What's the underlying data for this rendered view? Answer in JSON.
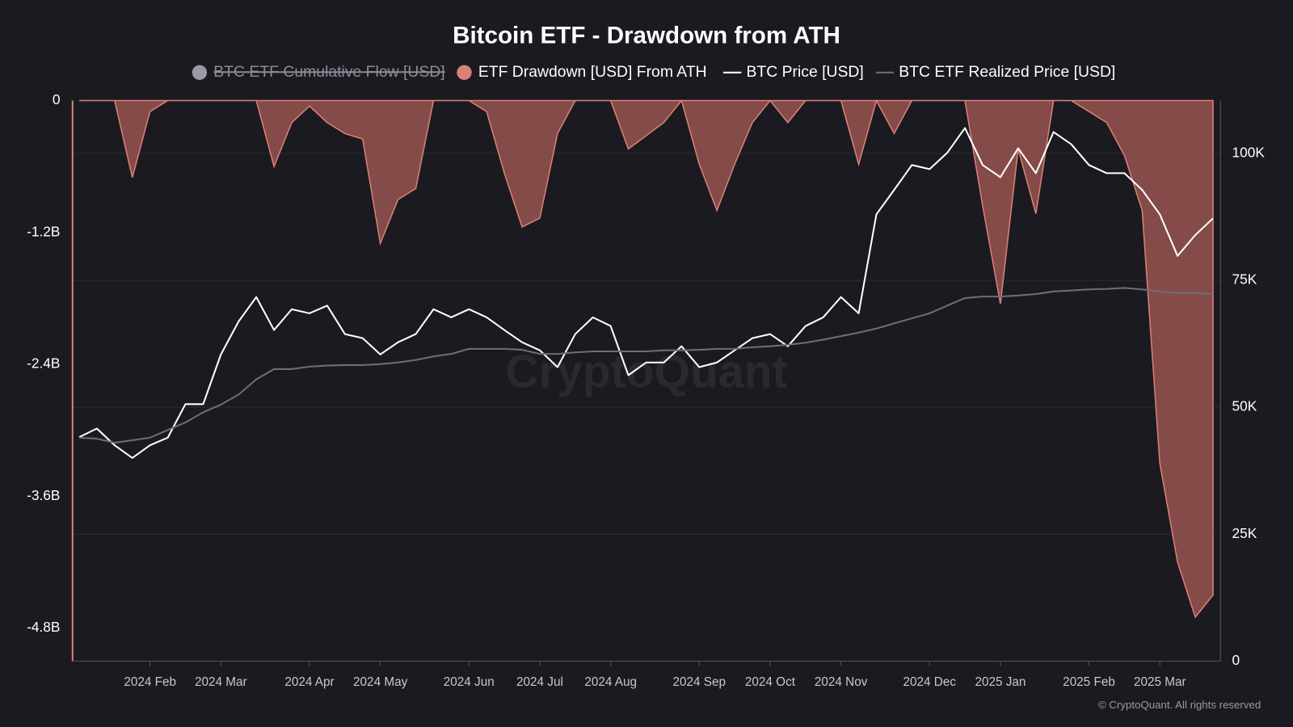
{
  "chart_data": {
    "type": "area_line",
    "title": "Bitcoin ETF - Drawdown from ATH",
    "watermark": "CryptoQuant",
    "footer": "© CryptoQuant. All rights reserved",
    "categories": [
      null,
      null,
      null,
      null,
      "2024 Feb",
      null,
      null,
      null,
      "2024 Mar",
      null,
      null,
      null,
      null,
      "2024 Apr",
      null,
      null,
      null,
      "2024 May",
      null,
      null,
      null,
      null,
      "2024 Jun",
      null,
      null,
      null,
      "2024 Jul",
      null,
      null,
      null,
      "2024 Aug",
      null,
      null,
      null,
      null,
      "2024 Sep",
      null,
      null,
      null,
      "2024 Oct",
      null,
      null,
      null,
      "2024 Nov",
      null,
      null,
      null,
      null,
      "2024 Dec",
      null,
      null,
      null,
      "2025 Jan",
      null,
      null,
      null,
      null,
      "2025 Feb",
      null,
      null,
      null,
      "2025 Mar",
      null,
      null,
      null
    ],
    "series": [
      {
        "name": "BTC ETF Cumulative Flow [USD]",
        "color": "#9a99a6",
        "visible": false
      },
      {
        "name": "ETF Drawdown [USD] From ATH",
        "color": "#d98277",
        "fill": "#8a4e4b",
        "axis": "y",
        "values": [
          0,
          0,
          0,
          -700000000,
          -100000000,
          0,
          0,
          0,
          0,
          0,
          0,
          -600000000,
          -200000000,
          -50000000,
          -200000000,
          -300000000,
          -350000000,
          -1300000000,
          -900000000,
          -800000000,
          0,
          0,
          0,
          -100000000,
          -660000000,
          -1150000000,
          -1070000000,
          -300000000,
          0,
          0,
          0,
          -440000000,
          -320000000,
          -200000000,
          0,
          -580000000,
          -1000000000,
          -580000000,
          -200000000,
          0,
          -200000000,
          0,
          0,
          0,
          -580000000,
          0,
          -300000000,
          0,
          0,
          0,
          0,
          -960000000,
          -1850000000,
          -440000000,
          -1030000000,
          0,
          0,
          -100000000,
          -200000000,
          -500000000,
          -1000000000,
          -3300000000,
          -4200000000,
          -4700000000,
          -4500000000
        ]
      },
      {
        "name": "BTC Price [USD]",
        "color": "#ffffff",
        "axis": "y2",
        "values": [
          44100,
          45800,
          42500,
          40000,
          42500,
          44000,
          50600,
          50600,
          60400,
          66900,
          71700,
          65200,
          69300,
          68500,
          70000,
          64400,
          63600,
          60400,
          62800,
          64400,
          69300,
          67700,
          69300,
          67700,
          65200,
          62800,
          61200,
          57900,
          64400,
          67700,
          66000,
          56300,
          58800,
          58800,
          62000,
          57900,
          58800,
          61200,
          63600,
          64400,
          62000,
          66000,
          67700,
          71700,
          68500,
          88000,
          92800,
          97700,
          96900,
          100100,
          105000,
          97700,
          95300,
          101000,
          96100,
          104200,
          101800,
          97700,
          96100,
          96100,
          92800,
          88000,
          79800,
          83900,
          87200
        ]
      },
      {
        "name": "BTC ETF Realized Price [USD]",
        "color": "#6e6d78",
        "axis": "y2",
        "values": [
          44000,
          43800,
          43000,
          43500,
          44000,
          45500,
          47000,
          49000,
          50500,
          52500,
          55500,
          57500,
          57500,
          58000,
          58200,
          58300,
          58300,
          58500,
          58800,
          59300,
          60000,
          60500,
          61500,
          61500,
          61500,
          61300,
          60500,
          60500,
          60800,
          61000,
          61000,
          61000,
          61000,
          61200,
          61200,
          61300,
          61500,
          61500,
          61800,
          62000,
          62300,
          62700,
          63300,
          64000,
          64700,
          65500,
          66500,
          67500,
          68500,
          70000,
          71500,
          71800,
          71800,
          72000,
          72300,
          72800,
          73000,
          73200,
          73300,
          73500,
          73200,
          72800,
          72500,
          72500,
          72300
        ]
      }
    ],
    "ylim": [
      -5100000000,
      0
    ],
    "yticks": [
      0,
      {
        "value": -1200000000,
        "label": "-1.2B"
      },
      {
        "value": -2400000000,
        "label": "-2.4B"
      },
      {
        "value": -3600000000,
        "label": "-3.6B"
      },
      {
        "value": -4800000000,
        "label": "-4.8B"
      }
    ],
    "y2lim": [
      0,
      110400
    ],
    "y2ticks": [
      0,
      {
        "value": 25000,
        "label": "25K"
      },
      {
        "value": 50000,
        "label": "50K"
      },
      {
        "value": 75000,
        "label": "75K"
      },
      {
        "value": 100000,
        "label": "100K"
      }
    ],
    "grid": true,
    "legend": "top"
  }
}
